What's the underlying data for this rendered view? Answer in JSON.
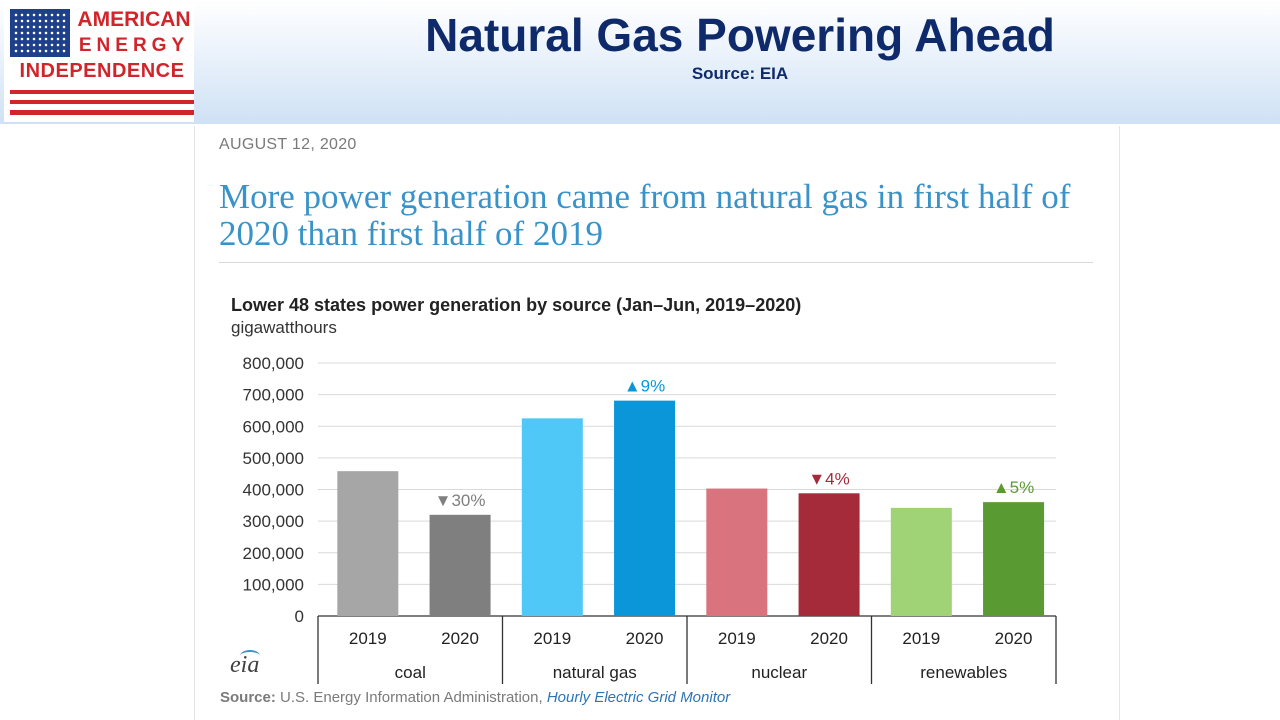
{
  "logo": {
    "line1": "AMERICAN",
    "line2": "ENERGY",
    "line3": "INDEPENDENCE"
  },
  "slide": {
    "title": "Natural Gas Powering Ahead",
    "source": "Source: EIA"
  },
  "article": {
    "date": "AUGUST 12, 2020",
    "headline": "More power generation came from natural gas in first half of 2020 than first half of 2019"
  },
  "footer": {
    "label": "Source:",
    "text": "U.S. Energy Information Administration,",
    "link": "Hourly Electric Grid Monitor"
  },
  "eia_logo": "eia",
  "chart_data": {
    "type": "bar",
    "title": "Lower 48 states power generation by source (Jan–Jun, 2019–2020)",
    "ylabel": "gigawatthours",
    "xlabel": "",
    "ylim": [
      0,
      800000
    ],
    "yticks": [
      "800,000",
      "700,000",
      "600,000",
      "500,000",
      "400,000",
      "300,000",
      "200,000",
      "100,000",
      "0"
    ],
    "ytick_values": [
      800000,
      700000,
      600000,
      500000,
      400000,
      300000,
      200000,
      100000,
      0
    ],
    "grid": true,
    "groups": [
      {
        "name": "coal",
        "bars": [
          {
            "year": "2019",
            "value": 458000,
            "color": "#a6a6a6"
          },
          {
            "year": "2020",
            "value": 320000,
            "color": "#7f7f7f"
          }
        ],
        "annotation": {
          "text": "▼30%",
          "color": "#7f7f7f"
        }
      },
      {
        "name": "natural gas",
        "bars": [
          {
            "year": "2019",
            "value": 625000,
            "color": "#4fc8f7"
          },
          {
            "year": "2020",
            "value": 681000,
            "color": "#0a96d8"
          }
        ],
        "annotation": {
          "text": "▲9%",
          "color": "#0a96d8"
        }
      },
      {
        "name": "nuclear",
        "bars": [
          {
            "year": "2019",
            "value": 403000,
            "color": "#d9747f"
          },
          {
            "year": "2020",
            "value": 388000,
            "color": "#a52a3a"
          }
        ],
        "annotation": {
          "text": "▼4%",
          "color": "#a52a3a"
        }
      },
      {
        "name": "renewables",
        "bars": [
          {
            "year": "2019",
            "value": 342000,
            "color": "#9fd375"
          },
          {
            "year": "2020",
            "value": 360000,
            "color": "#5a9a32"
          }
        ],
        "annotation": {
          "text": "▲5%",
          "color": "#5a9a32"
        }
      }
    ]
  }
}
